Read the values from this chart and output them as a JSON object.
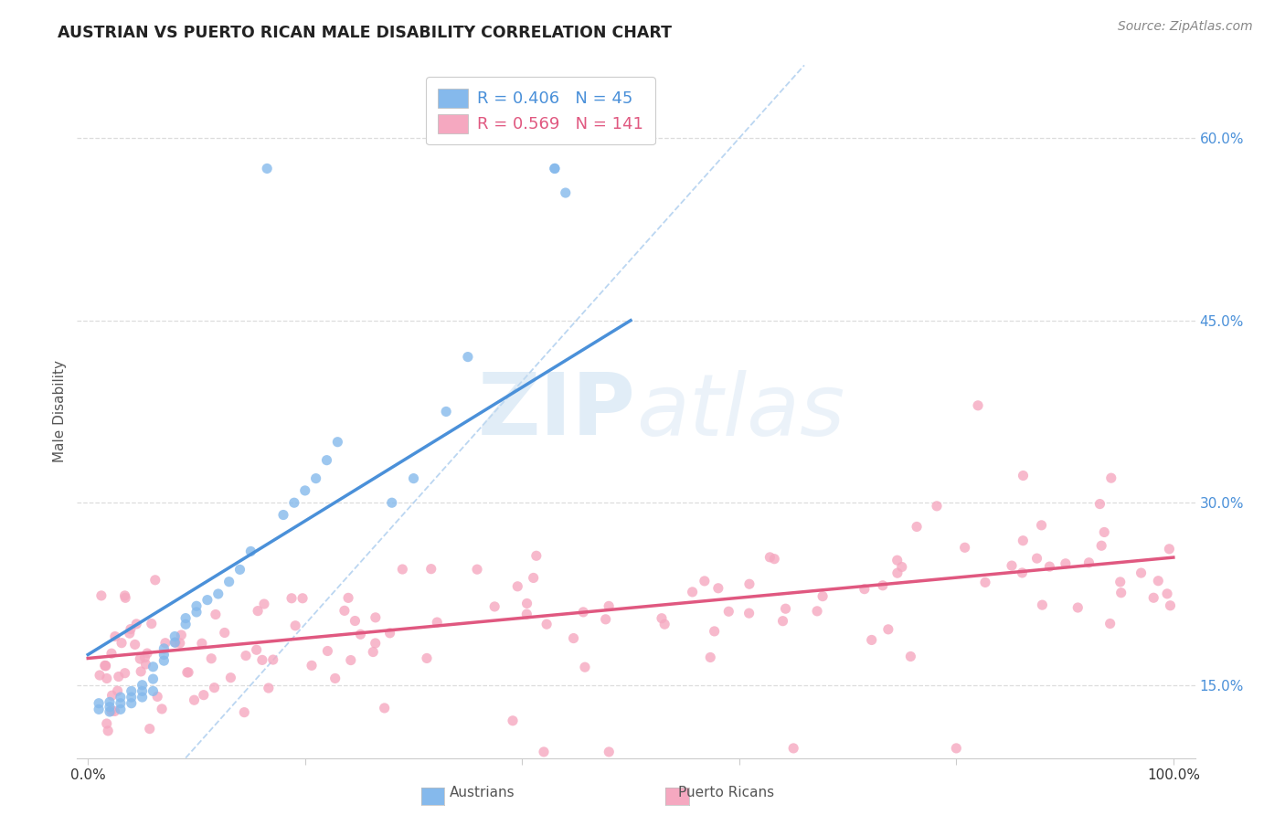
{
  "title": "AUSTRIAN VS PUERTO RICAN MALE DISABILITY CORRELATION CHART",
  "source": "Source: ZipAtlas.com",
  "ylabel": "Male Disability",
  "y_tick_labels": [
    "15.0%",
    "30.0%",
    "45.0%",
    "60.0%"
  ],
  "y_tick_values": [
    0.15,
    0.3,
    0.45,
    0.6
  ],
  "xlim": [
    -0.01,
    1.02
  ],
  "ylim": [
    0.09,
    0.66
  ],
  "austrian_color": "#85B9EC",
  "puerto_rican_color": "#F5A8C0",
  "line_austrian_color": "#4A90D9",
  "line_puerto_rican_color": "#E05880",
  "diagonal_color": "#AACCEE",
  "legend_R_austrian": "R = 0.406",
  "legend_N_austrian": "N = 45",
  "legend_R_puerto": "R = 0.569",
  "legend_N_puerto": "N = 141",
  "watermark_zip": "ZIP",
  "watermark_atlas": "atlas",
  "background_color": "#FFFFFF",
  "grid_color": "#DDDDDD",
  "austrian_line_x0": 0.0,
  "austrian_line_y0": 0.175,
  "austrian_line_x1": 0.5,
  "austrian_line_y1": 0.45,
  "puerto_line_x0": 0.0,
  "puerto_line_y0": 0.172,
  "puerto_line_x1": 1.0,
  "puerto_line_y1": 0.255
}
